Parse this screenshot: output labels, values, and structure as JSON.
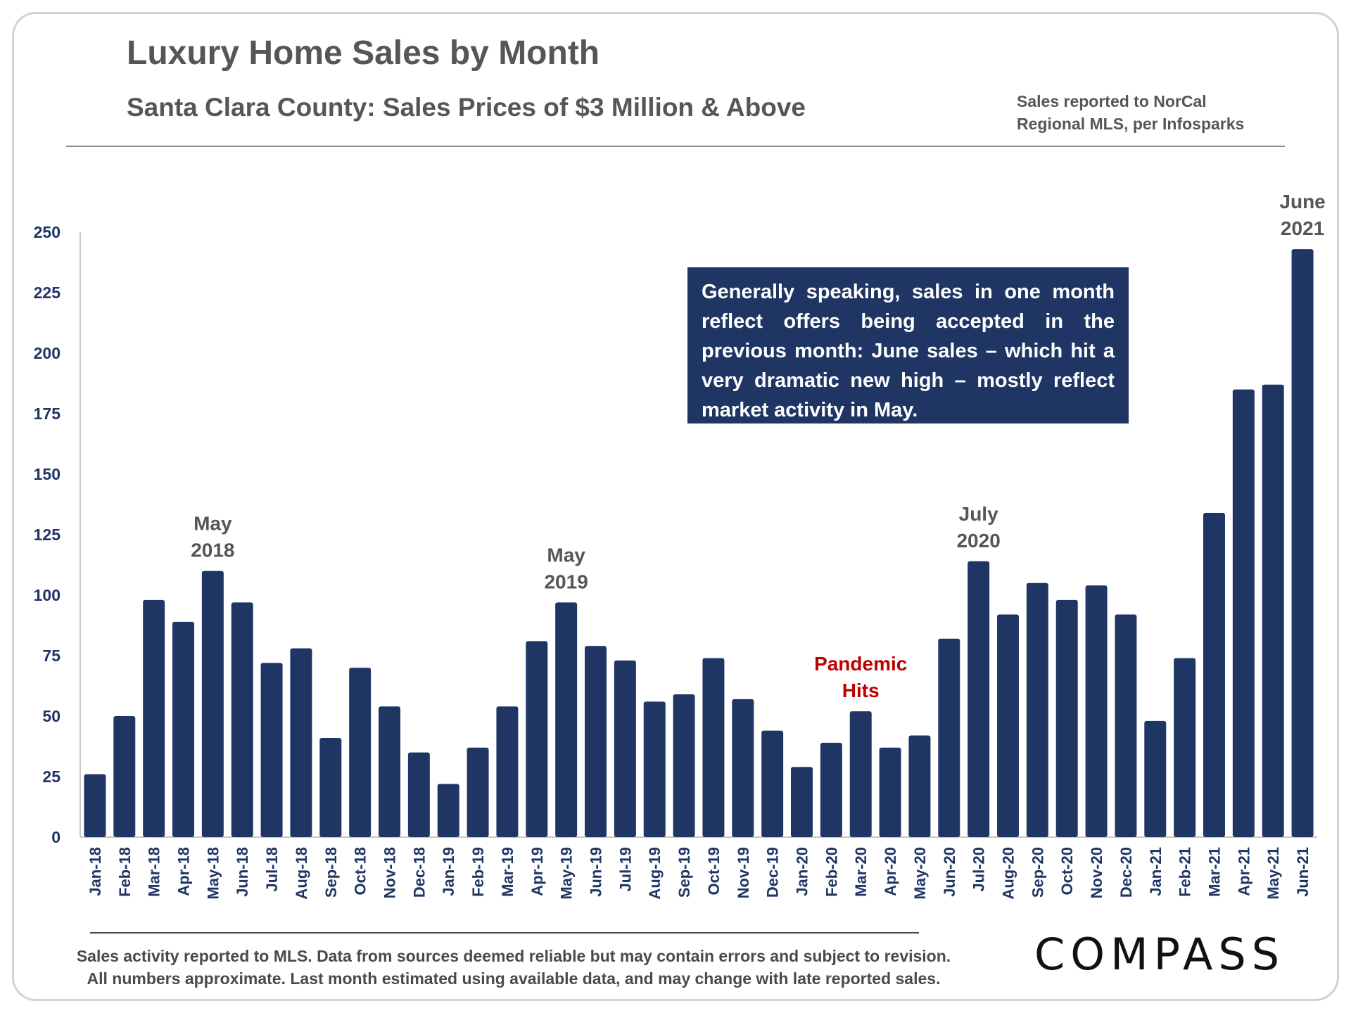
{
  "header": {
    "title": "Luxury Home Sales by Month",
    "subtitle": "Santa Clara County: Sales Prices of $3 Million & Above",
    "source_line1": "Sales reported to NorCal",
    "source_line2": "Regional MLS, per Infosparks"
  },
  "callout": {
    "text": "Generally speaking, sales in one month reflect offers being accepted in the previous month: June sales – which hit a very dramatic new high – mostly reflect market activity in May."
  },
  "footer": {
    "note_line1": "Sales activity reported to MLS. Data from sources deemed reliable but may contain errors and subject to revision.",
    "note_line2": "All numbers approximate. Last month estimated using available data, and may change with late reported sales.",
    "logo": "COMPASS"
  },
  "colors": {
    "bar": "#1f3564",
    "annotation_gray": "#565656",
    "annotation_red": "#c00000"
  },
  "chart_data": {
    "type": "bar",
    "title": "Luxury Home Sales by Month",
    "xlabel": "",
    "ylabel": "",
    "ylim": [
      0,
      250
    ],
    "yticks": [
      0,
      25,
      50,
      75,
      100,
      125,
      150,
      175,
      200,
      225,
      250
    ],
    "grid": false,
    "categories": [
      "Jan-18",
      "Feb-18",
      "Mar-18",
      "Apr-18",
      "May-18",
      "Jun-18",
      "Jul-18",
      "Aug-18",
      "Sep-18",
      "Oct-18",
      "Nov-18",
      "Dec-18",
      "Jan-19",
      "Feb-19",
      "Mar-19",
      "Apr-19",
      "May-19",
      "Jun-19",
      "Jul-19",
      "Aug-19",
      "Sep-19",
      "Oct-19",
      "Nov-19",
      "Dec-19",
      "Jan-20",
      "Feb-20",
      "Mar-20",
      "Apr-20",
      "May-20",
      "Jun-20",
      "Jul-20",
      "Aug-20",
      "Sep-20",
      "Oct-20",
      "Nov-20",
      "Dec-20",
      "Jan-21",
      "Feb-21",
      "Mar-21",
      "Apr-21",
      "May-21",
      "Jun-21"
    ],
    "values": [
      26,
      50,
      98,
      89,
      110,
      97,
      72,
      78,
      41,
      70,
      54,
      35,
      22,
      37,
      54,
      81,
      97,
      79,
      73,
      56,
      59,
      74,
      57,
      44,
      29,
      39,
      52,
      37,
      42,
      82,
      114,
      92,
      105,
      98,
      104,
      92,
      48,
      74,
      134,
      185,
      187,
      243
    ],
    "annotations": [
      {
        "category": "May-18",
        "lines": [
          "May",
          "2018"
        ],
        "color": "gray"
      },
      {
        "category": "May-19",
        "lines": [
          "May",
          "2019"
        ],
        "color": "gray"
      },
      {
        "category": "Mar-20",
        "lines": [
          "Pandemic",
          "Hits"
        ],
        "color": "red"
      },
      {
        "category": "Jul-20",
        "lines": [
          "July",
          "2020"
        ],
        "color": "gray"
      },
      {
        "category": "Jun-21",
        "lines": [
          "June",
          "2021"
        ],
        "color": "gray"
      }
    ]
  }
}
